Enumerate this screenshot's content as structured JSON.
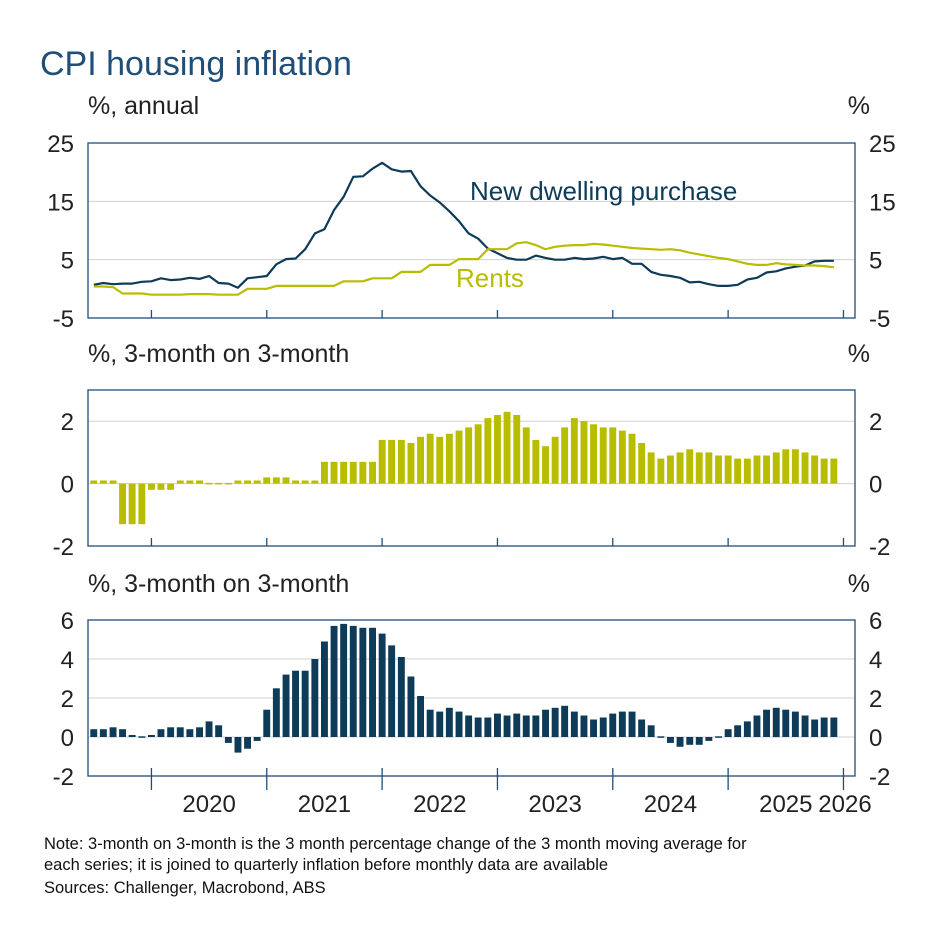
{
  "title": "CPI housing inflation",
  "notes": [
    "Note: 3-month on 3-month is the 3 month percentage change of the 3 month moving average for",
    "each series; it is joined to quarterly inflation before monthly data are available",
    "Sources: Challenger, Macrobond, ABS"
  ],
  "x_axis": {
    "labels": [
      "2020",
      "2021",
      "2022",
      "2023",
      "2024",
      "2025",
      "2026"
    ],
    "start": 2019.45,
    "end": 2026.1
  },
  "colors": {
    "navy": "#0d3b58",
    "olive": "#b9bd00",
    "frame": "#1f4e79",
    "grid": "#d0d0d0",
    "text": "#222222",
    "title": "#1f4e79"
  },
  "chart_data": [
    {
      "id": "annual",
      "type": "line",
      "left_unit": "%, annual",
      "right_unit": "%",
      "ylim": [
        -5,
        25
      ],
      "ticks": [
        "25",
        "15",
        "5",
        "-5"
      ],
      "tick_values": [
        25,
        15,
        5,
        -5
      ],
      "grid": true,
      "series": [
        {
          "name": "New dwelling purchase",
          "color": "#0d3b58",
          "x": [
            2019.5,
            2019.583,
            2019.667,
            2019.75,
            2019.833,
            2019.917,
            2020.0,
            2020.083,
            2020.167,
            2020.25,
            2020.333,
            2020.417,
            2020.5,
            2020.583,
            2020.667,
            2020.75,
            2020.833,
            2020.917,
            2021.0,
            2021.083,
            2021.167,
            2021.25,
            2021.333,
            2021.417,
            2021.5,
            2021.583,
            2021.667,
            2021.75,
            2021.833,
            2021.917,
            2022.0,
            2022.083,
            2022.167,
            2022.25,
            2022.333,
            2022.417,
            2022.5,
            2022.583,
            2022.667,
            2022.75,
            2022.833,
            2022.917,
            2023.0,
            2023.083,
            2023.167,
            2023.25,
            2023.333,
            2023.417,
            2023.5,
            2023.583,
            2023.667,
            2023.75,
            2023.833,
            2023.917,
            2024.0,
            2024.083,
            2024.167,
            2024.25,
            2024.333,
            2024.417,
            2024.5,
            2024.583,
            2024.667,
            2024.75,
            2024.833,
            2024.917,
            2025.0,
            2025.083,
            2025.167,
            2025.25,
            2025.333,
            2025.417,
            2025.5,
            2025.583,
            2025.667,
            2025.75,
            2025.833,
            2025.917
          ],
          "values": [
            0.7,
            1.0,
            0.8,
            0.9,
            0.9,
            1.2,
            1.3,
            1.8,
            1.5,
            1.6,
            1.9,
            1.7,
            2.2,
            1.0,
            0.9,
            0.2,
            1.8,
            2.0,
            2.2,
            4.2,
            5.1,
            5.2,
            6.8,
            9.5,
            10.2,
            13.5,
            15.8,
            19.2,
            19.3,
            20.6,
            21.6,
            20.5,
            20.1,
            20.2,
            17.6,
            16.0,
            14.8,
            13.3,
            11.6,
            9.5,
            8.6,
            6.9,
            6.1,
            5.3,
            5.0,
            5.0,
            5.7,
            5.3,
            5.0,
            5.0,
            5.3,
            5.1,
            5.2,
            5.5,
            5.1,
            5.3,
            4.3,
            4.3,
            2.9,
            2.4,
            2.2,
            1.9,
            1.1,
            1.2,
            0.8,
            0.5,
            0.5,
            0.7,
            1.6,
            1.9,
            2.8,
            3.0,
            3.5,
            3.8,
            4.0,
            4.7,
            4.8,
            4.8
          ]
        },
        {
          "name": "Rents",
          "color": "#b9bd00",
          "x": [
            2019.5,
            2019.583,
            2019.667,
            2019.75,
            2019.833,
            2019.917,
            2020.0,
            2020.083,
            2020.167,
            2020.25,
            2020.333,
            2020.417,
            2020.5,
            2020.583,
            2020.667,
            2020.75,
            2020.833,
            2020.917,
            2021.0,
            2021.083,
            2021.167,
            2021.25,
            2021.333,
            2021.417,
            2021.5,
            2021.583,
            2021.667,
            2021.75,
            2021.833,
            2021.917,
            2022.0,
            2022.083,
            2022.167,
            2022.25,
            2022.333,
            2022.417,
            2022.5,
            2022.583,
            2022.667,
            2022.75,
            2022.833,
            2022.917,
            2023.0,
            2023.083,
            2023.167,
            2023.25,
            2023.333,
            2023.417,
            2023.5,
            2023.583,
            2023.667,
            2023.75,
            2023.833,
            2023.917,
            2024.0,
            2024.083,
            2024.167,
            2024.25,
            2024.333,
            2024.417,
            2024.5,
            2024.583,
            2024.667,
            2024.75,
            2024.833,
            2024.917,
            2025.0,
            2025.083,
            2025.167,
            2025.25,
            2025.333,
            2025.417,
            2025.5,
            2025.583,
            2025.667,
            2025.75,
            2025.833,
            2025.917
          ],
          "values": [
            0.4,
            0.4,
            0.3,
            -0.8,
            -0.8,
            -0.8,
            -1.0,
            -1.0,
            -1.0,
            -1.0,
            -0.9,
            -0.9,
            -0.9,
            -1.0,
            -1.0,
            -1.0,
            0.0,
            0.0,
            0.0,
            0.5,
            0.5,
            0.5,
            0.5,
            0.5,
            0.5,
            0.5,
            1.3,
            1.3,
            1.3,
            1.8,
            1.8,
            1.8,
            2.9,
            2.9,
            2.9,
            4.1,
            4.1,
            4.1,
            5.1,
            5.1,
            5.1,
            6.8,
            6.8,
            6.8,
            7.8,
            8.0,
            7.5,
            6.8,
            7.2,
            7.4,
            7.5,
            7.5,
            7.7,
            7.6,
            7.4,
            7.2,
            7.0,
            6.9,
            6.8,
            6.7,
            6.8,
            6.6,
            6.2,
            5.9,
            5.6,
            5.3,
            5.1,
            4.7,
            4.3,
            4.1,
            4.1,
            4.4,
            4.2,
            4.1,
            4.0,
            4.0,
            3.9,
            3.7
          ]
        }
      ],
      "annotations": [
        "New dwelling purchase",
        "Rents"
      ]
    },
    {
      "id": "rents_3m",
      "type": "bar",
      "left_unit": "%, 3-month on 3-month",
      "right_unit": "%",
      "ylim": [
        -2,
        3
      ],
      "ticks": [
        "2",
        "0",
        "-2"
      ],
      "tick_values": [
        2,
        0,
        -2
      ],
      "grid": true,
      "color": "#b9bd00",
      "x": [
        2019.5,
        2019.583,
        2019.667,
        2019.75,
        2019.833,
        2019.917,
        2020.0,
        2020.083,
        2020.167,
        2020.25,
        2020.333,
        2020.417,
        2020.5,
        2020.583,
        2020.667,
        2020.75,
        2020.833,
        2020.917,
        2021.0,
        2021.083,
        2021.167,
        2021.25,
        2021.333,
        2021.417,
        2021.5,
        2021.583,
        2021.667,
        2021.75,
        2021.833,
        2021.917,
        2022.0,
        2022.083,
        2022.167,
        2022.25,
        2022.333,
        2022.417,
        2022.5,
        2022.583,
        2022.667,
        2022.75,
        2022.833,
        2022.917,
        2023.0,
        2023.083,
        2023.167,
        2023.25,
        2023.333,
        2023.417,
        2023.5,
        2023.583,
        2023.667,
        2023.75,
        2023.833,
        2023.917,
        2024.0,
        2024.083,
        2024.167,
        2024.25,
        2024.333,
        2024.417,
        2024.5,
        2024.583,
        2024.667,
        2024.75,
        2024.833,
        2024.917,
        2025.0,
        2025.083,
        2025.167,
        2025.25,
        2025.333,
        2025.417,
        2025.5,
        2025.583,
        2025.667,
        2025.75,
        2025.833,
        2025.917
      ],
      "values": [
        0.1,
        0.1,
        0.1,
        -1.3,
        -1.3,
        -1.3,
        -0.2,
        -0.2,
        -0.2,
        0.1,
        0.1,
        0.1,
        0.0,
        0.0,
        0.0,
        0.1,
        0.1,
        0.1,
        0.2,
        0.2,
        0.2,
        0.1,
        0.1,
        0.1,
        0.7,
        0.7,
        0.7,
        0.7,
        0.7,
        0.7,
        1.4,
        1.4,
        1.4,
        1.3,
        1.5,
        1.6,
        1.5,
        1.6,
        1.7,
        1.8,
        1.9,
        2.1,
        2.2,
        2.3,
        2.2,
        1.8,
        1.4,
        1.2,
        1.5,
        1.8,
        2.1,
        2.0,
        1.9,
        1.8,
        1.8,
        1.7,
        1.6,
        1.3,
        1.0,
        0.8,
        0.9,
        1.0,
        1.1,
        1.0,
        1.0,
        0.9,
        0.9,
        0.8,
        0.8,
        0.9,
        0.9,
        1.0,
        1.1,
        1.1,
        1.0,
        0.9,
        0.8,
        0.8
      ]
    },
    {
      "id": "new_dwelling_3m",
      "type": "bar",
      "left_unit": "%, 3-month on 3-month",
      "right_unit": "%",
      "ylim": [
        -2,
        6
      ],
      "ticks": [
        "6",
        "4",
        "2",
        "0",
        "-2"
      ],
      "tick_values": [
        6,
        4,
        2,
        0,
        -2
      ],
      "grid": true,
      "color": "#0d3b58",
      "x": [
        2019.5,
        2019.583,
        2019.667,
        2019.75,
        2019.833,
        2019.917,
        2020.0,
        2020.083,
        2020.167,
        2020.25,
        2020.333,
        2020.417,
        2020.5,
        2020.583,
        2020.667,
        2020.75,
        2020.833,
        2020.917,
        2021.0,
        2021.083,
        2021.167,
        2021.25,
        2021.333,
        2021.417,
        2021.5,
        2021.583,
        2021.667,
        2021.75,
        2021.833,
        2021.917,
        2022.0,
        2022.083,
        2022.167,
        2022.25,
        2022.333,
        2022.417,
        2022.5,
        2022.583,
        2022.667,
        2022.75,
        2022.833,
        2022.917,
        2023.0,
        2023.083,
        2023.167,
        2023.25,
        2023.333,
        2023.417,
        2023.5,
        2023.583,
        2023.667,
        2023.75,
        2023.833,
        2023.917,
        2024.0,
        2024.083,
        2024.167,
        2024.25,
        2024.333,
        2024.417,
        2024.5,
        2024.583,
        2024.667,
        2024.75,
        2024.833,
        2024.917,
        2025.0,
        2025.083,
        2025.167,
        2025.25,
        2025.333,
        2025.417,
        2025.5,
        2025.583,
        2025.667,
        2025.75,
        2025.833,
        2025.917
      ],
      "values": [
        0.4,
        0.4,
        0.5,
        0.4,
        0.1,
        0.0,
        0.1,
        0.4,
        0.5,
        0.5,
        0.4,
        0.5,
        0.8,
        0.6,
        -0.3,
        -0.8,
        -0.6,
        -0.2,
        1.4,
        2.5,
        3.2,
        3.4,
        3.4,
        4.0,
        4.9,
        5.7,
        5.8,
        5.7,
        5.6,
        5.6,
        5.3,
        4.7,
        4.1,
        3.1,
        2.1,
        1.4,
        1.3,
        1.5,
        1.3,
        1.1,
        1.0,
        1.0,
        1.2,
        1.1,
        1.2,
        1.1,
        1.1,
        1.4,
        1.5,
        1.6,
        1.3,
        1.1,
        0.9,
        1.0,
        1.2,
        1.3,
        1.3,
        0.9,
        0.6,
        0.0,
        -0.3,
        -0.5,
        -0.4,
        -0.4,
        -0.2,
        0.0,
        0.4,
        0.6,
        0.8,
        1.1,
        1.4,
        1.5,
        1.4,
        1.3,
        1.1,
        0.9,
        1.0,
        1.0
      ]
    }
  ]
}
